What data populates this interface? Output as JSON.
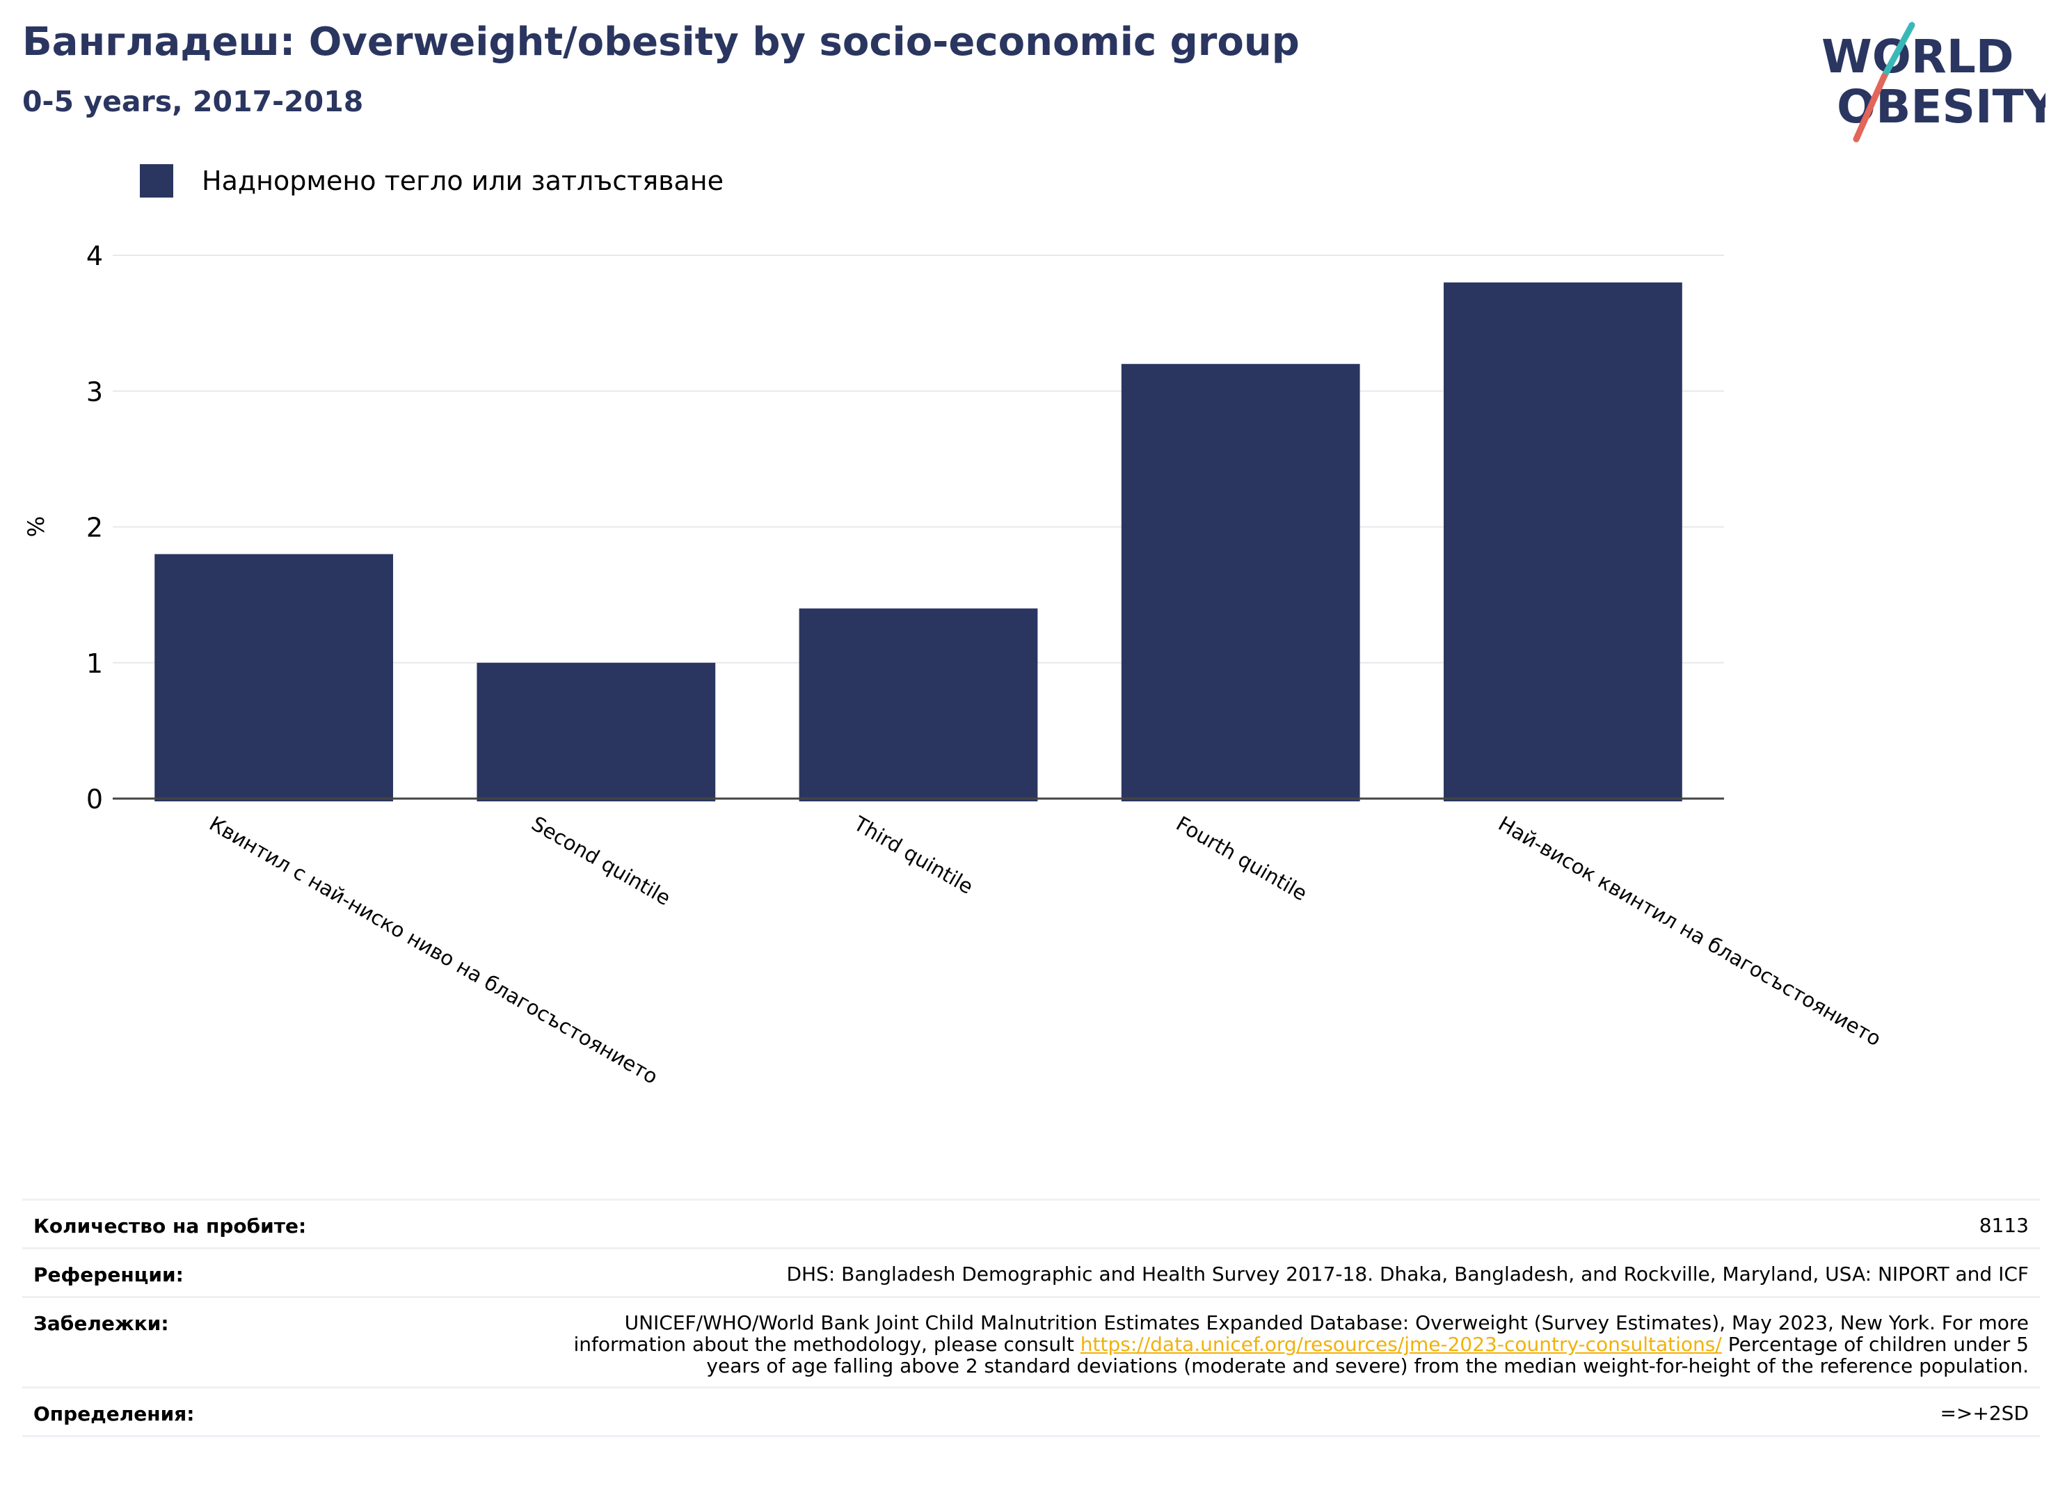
{
  "header": {
    "title": "Бангладеш: Overweight/obesity by socio-economic group",
    "subtitle": "0-5 years, 2017-2018"
  },
  "logo": {
    "line1": "WORLD",
    "line2": "OBESITY",
    "colors": {
      "text": "#2a3660",
      "slash_top": "#3ab8b8",
      "slash_bottom": "#e2665a"
    }
  },
  "chart_data": {
    "type": "bar",
    "categories": [
      "Квинтил с най-ниско ниво на благосъстоянието",
      "Second quintile",
      "Third quintile",
      "Fourth quintile",
      "Най-висок квинтил на благосъстоянието"
    ],
    "series": [
      {
        "name": "Наднормено тегло или затлъстяване",
        "values": [
          1.8,
          1.0,
          1.4,
          3.2,
          3.8
        ],
        "color": "#2a3660"
      }
    ],
    "title": "Бангладеш: Overweight/obesity by socio-economic group",
    "subtitle": "0-5 years, 2017-2018",
    "xlabel": "",
    "ylabel": "%",
    "ylim": [
      0,
      4
    ],
    "yticks": [
      0,
      1,
      2,
      3,
      4
    ],
    "grid": true,
    "legend_position": "top-left"
  },
  "notes": {
    "sample_label": "Количество на пробите:",
    "sample_value": "8113",
    "references_label": "Референции:",
    "references_value": "DHS: Bangladesh Demographic and Health Survey 2017-18. Dhaka, Bangladesh, and Rockville, Maryland, USA: NIPORT and ICF",
    "remarks_label": "Забележки:",
    "remarks_text_before": "UNICEF/WHO/World Bank Joint Child Malnutrition Estimates Expanded Database: Overweight (Survey Estimates), May 2023, New York. For more information about the methodology, please consult ",
    "remarks_link": "https://data.unicef.org/resources/jme-2023-country-consultations/",
    "remarks_text_after": " Percentage of children under 5 years of age falling above 2 standard deviations (moderate and severe) from the median weight-for-height of the reference population.",
    "definitions_label": "Определения:",
    "definitions_value": "=>+2SD"
  }
}
